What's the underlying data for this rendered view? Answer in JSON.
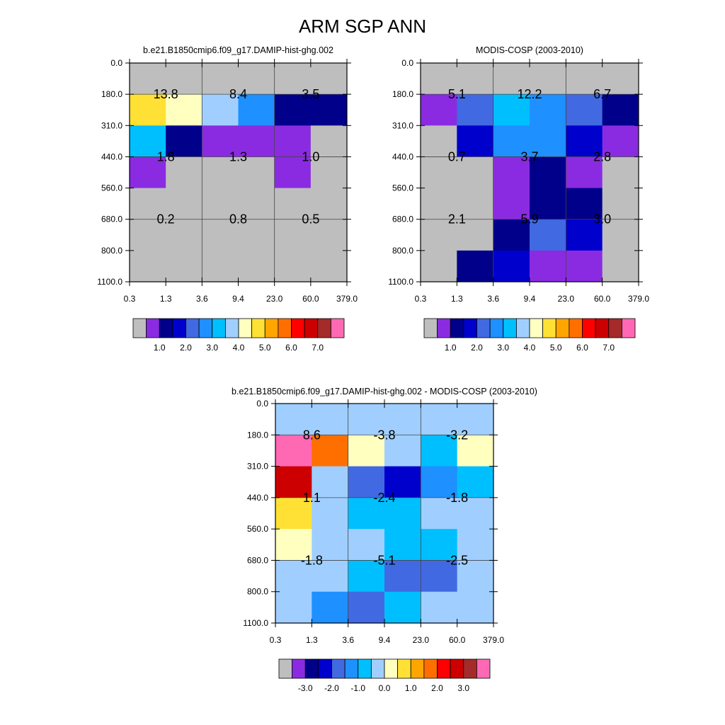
{
  "title": "ARM SGP ANN",
  "x_ticks": [
    "0.3",
    "1.3",
    "3.6",
    "9.4",
    "23.0",
    "60.0",
    "379.0"
  ],
  "y_ticks": [
    "0.0",
    "180.0",
    "310.0",
    "440.0",
    "560.0",
    "680.0",
    "800.0",
    "1100.0"
  ],
  "colors": {
    "gray": "#BEBEBE",
    "purple": "#8A2BE2",
    "navy": "#00008B",
    "mediumblue": "#0000CD",
    "royalblue": "#4169E1",
    "dodgerblue": "#1E90FF",
    "deepskyblue": "#00BFFF",
    "lightblue": "#A0CFFF",
    "lightyellow": "#FFFFC0",
    "gold": "#FFE135",
    "orange": "#FFA500",
    "darkorange": "#FF6F00",
    "red": "#FF0000",
    "darkred": "#CC0000",
    "brown": "#A52A2A",
    "pink": "#FF69B4"
  },
  "chart_data": [
    {
      "type": "heatmap",
      "title": "b.e21.B1850cmip6.f09_g17.DAMIP-hist-ghg.002",
      "x_ticks": [
        "0.3",
        "1.3",
        "3.6",
        "9.4",
        "23.0",
        "60.0",
        "379.0"
      ],
      "y_ticks": [
        "0.0",
        "180.0",
        "310.0",
        "440.0",
        "560.0",
        "680.0",
        "800.0",
        "1100.0"
      ],
      "cell_colors": [
        [
          "gray",
          "gray",
          "gray",
          "gray",
          "gray",
          "gray"
        ],
        [
          "gold",
          "lightyellow",
          "lightblue",
          "dodgerblue",
          "navy",
          "navy"
        ],
        [
          "deepskyblue",
          "navy",
          "purple",
          "purple",
          "purple",
          "gray"
        ],
        [
          "purple",
          "gray",
          "gray",
          "gray",
          "purple",
          "gray"
        ],
        [
          "gray",
          "gray",
          "gray",
          "gray",
          "gray",
          "gray"
        ],
        [
          "gray",
          "gray",
          "gray",
          "gray",
          "gray",
          "gray"
        ],
        [
          "gray",
          "gray",
          "gray",
          "gray",
          "gray",
          "gray"
        ]
      ],
      "annotations": [
        [
          "13.8",
          "8.4",
          "3.5"
        ],
        [
          "1.8",
          "1.3",
          "1.0"
        ],
        [
          "0.2",
          "0.8",
          "0.5"
        ]
      ],
      "colorbar": {
        "colors": [
          "gray",
          "purple",
          "navy",
          "mediumblue",
          "royalblue",
          "dodgerblue",
          "deepskyblue",
          "lightblue",
          "lightyellow",
          "gold",
          "orange",
          "darkorange",
          "red",
          "darkred",
          "brown",
          "pink"
        ],
        "labels": [
          "1.0",
          "2.0",
          "3.0",
          "4.0",
          "5.0",
          "6.0",
          "7.0"
        ]
      }
    },
    {
      "type": "heatmap",
      "title": "MODIS-COSP (2003-2010)",
      "x_ticks": [
        "0.3",
        "1.3",
        "3.6",
        "9.4",
        "23.0",
        "60.0",
        "379.0"
      ],
      "y_ticks": [
        "0.0",
        "180.0",
        "310.0",
        "440.0",
        "560.0",
        "680.0",
        "800.0",
        "1100.0"
      ],
      "cell_colors": [
        [
          "gray",
          "gray",
          "gray",
          "gray",
          "gray",
          "gray"
        ],
        [
          "purple",
          "royalblue",
          "deepskyblue",
          "dodgerblue",
          "royalblue",
          "navy"
        ],
        [
          "gray",
          "mediumblue",
          "dodgerblue",
          "dodgerblue",
          "mediumblue",
          "purple"
        ],
        [
          "gray",
          "gray",
          "purple",
          "navy",
          "purple",
          "gray"
        ],
        [
          "gray",
          "gray",
          "purple",
          "navy",
          "navy",
          "gray"
        ],
        [
          "gray",
          "gray",
          "navy",
          "royalblue",
          "mediumblue",
          "gray"
        ],
        [
          "gray",
          "navy",
          "mediumblue",
          "purple",
          "purple",
          "gray"
        ]
      ],
      "annotations": [
        [
          "5.1",
          "12.2",
          "6.7"
        ],
        [
          "0.7",
          "3.7",
          "2.8"
        ],
        [
          "2.1",
          "5.9",
          "3.0"
        ]
      ],
      "colorbar": {
        "colors": [
          "gray",
          "purple",
          "navy",
          "mediumblue",
          "royalblue",
          "dodgerblue",
          "deepskyblue",
          "lightblue",
          "lightyellow",
          "gold",
          "orange",
          "darkorange",
          "red",
          "darkred",
          "brown",
          "pink"
        ],
        "labels": [
          "1.0",
          "2.0",
          "3.0",
          "4.0",
          "5.0",
          "6.0",
          "7.0"
        ]
      }
    },
    {
      "type": "heatmap",
      "title": "b.e21.B1850cmip6.f09_g17.DAMIP-hist-ghg.002 - MODIS-COSP (2003-2010)",
      "x_ticks": [
        "0.3",
        "1.3",
        "3.6",
        "9.4",
        "23.0",
        "60.0",
        "379.0"
      ],
      "y_ticks": [
        "0.0",
        "180.0",
        "310.0",
        "440.0",
        "560.0",
        "680.0",
        "800.0",
        "1100.0"
      ],
      "cell_colors": [
        [
          "lightblue",
          "lightblue",
          "lightblue",
          "lightblue",
          "lightblue",
          "lightblue"
        ],
        [
          "pink",
          "darkorange",
          "lightyellow",
          "lightblue",
          "deepskyblue",
          "lightyellow"
        ],
        [
          "darkred",
          "lightblue",
          "royalblue",
          "mediumblue",
          "dodgerblue",
          "deepskyblue"
        ],
        [
          "gold",
          "lightblue",
          "deepskyblue",
          "deepskyblue",
          "lightblue",
          "lightblue"
        ],
        [
          "lightyellow",
          "lightblue",
          "lightblue",
          "deepskyblue",
          "deepskyblue",
          "lightblue"
        ],
        [
          "lightblue",
          "lightblue",
          "deepskyblue",
          "royalblue",
          "royalblue",
          "lightblue"
        ],
        [
          "lightblue",
          "dodgerblue",
          "royalblue",
          "deepskyblue",
          "lightblue",
          "lightblue"
        ]
      ],
      "annotations": [
        [
          "8.6",
          "-3.8",
          "-3.2"
        ],
        [
          "1.1",
          "-2.4",
          "-1.8"
        ],
        [
          "-1.8",
          "-5.1",
          "-2.5"
        ]
      ],
      "colorbar": {
        "colors": [
          "gray",
          "purple",
          "navy",
          "mediumblue",
          "royalblue",
          "dodgerblue",
          "deepskyblue",
          "lightblue",
          "lightyellow",
          "gold",
          "orange",
          "darkorange",
          "red",
          "darkred",
          "brown",
          "pink"
        ],
        "labels": [
          "-3.0",
          "-2.0",
          "-1.0",
          "0.0",
          "1.0",
          "2.0",
          "3.0"
        ]
      }
    }
  ]
}
